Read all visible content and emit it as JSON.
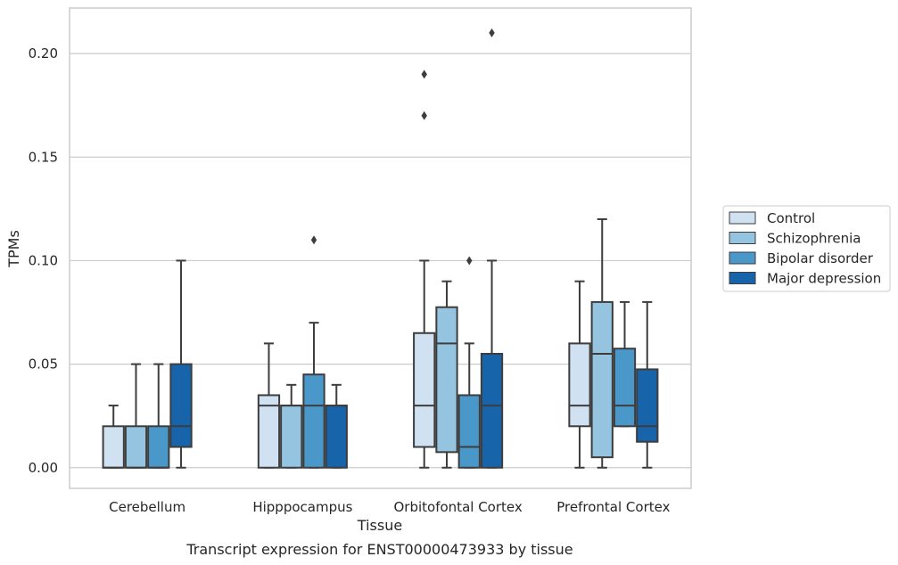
{
  "caption": "Transcript expression for ENST00000473933 by tissue",
  "chart_data": {
    "type": "box",
    "xlabel": "Tissue",
    "ylabel": "TPMs",
    "ylim": [
      -0.01,
      0.222
    ],
    "yticks": [
      "0.00",
      "0.05",
      "0.10",
      "0.15",
      "0.20"
    ],
    "ytick_values": [
      0,
      0.05,
      0.1,
      0.15,
      0.2
    ],
    "grid": "horizontal",
    "legend_position": "right",
    "categories": [
      "Cerebellum",
      "Hipppocampus",
      "Orbitofontal Cortex",
      "Prefrontal Cortex"
    ],
    "series": [
      {
        "name": "Control",
        "color": "#d0e1f2",
        "boxes": [
          {
            "whislo": 0,
            "q1": 0,
            "med": 0,
            "q3": 0.02,
            "whishi": 0.03,
            "fliers": []
          },
          {
            "whislo": 0,
            "q1": 0,
            "med": 0.03,
            "q3": 0.035,
            "whishi": 0.06,
            "fliers": []
          },
          {
            "whislo": 0,
            "q1": 0.01,
            "med": 0.03,
            "q3": 0.065,
            "whishi": 0.1,
            "fliers": [
              0.17,
              0.19
            ]
          },
          {
            "whislo": 0,
            "q1": 0.02,
            "med": 0.03,
            "q3": 0.06,
            "whishi": 0.09,
            "fliers": []
          }
        ]
      },
      {
        "name": "Schizophrenia",
        "color": "#94c4df",
        "boxes": [
          {
            "whislo": 0,
            "q1": 0,
            "med": 0,
            "q3": 0.02,
            "whishi": 0.05,
            "fliers": []
          },
          {
            "whislo": 0,
            "q1": 0,
            "med": 0.03,
            "q3": 0.03,
            "whishi": 0.04,
            "fliers": []
          },
          {
            "whislo": 0,
            "q1": 0.0075,
            "med": 0.06,
            "q3": 0.0775,
            "whishi": 0.09,
            "fliers": []
          },
          {
            "whislo": 0,
            "q1": 0.005,
            "med": 0.055,
            "q3": 0.08,
            "whishi": 0.12,
            "fliers": []
          }
        ]
      },
      {
        "name": "Bipolar disorder",
        "color": "#4a98c9",
        "boxes": [
          {
            "whislo": 0,
            "q1": 0,
            "med": 0,
            "q3": 0.02,
            "whishi": 0.05,
            "fliers": []
          },
          {
            "whislo": 0,
            "q1": 0,
            "med": 0.03,
            "q3": 0.045,
            "whishi": 0.07,
            "fliers": [
              0.11
            ]
          },
          {
            "whislo": 0,
            "q1": 0,
            "med": 0.01,
            "q3": 0.035,
            "whishi": 0.06,
            "fliers": [
              0.1
            ]
          },
          {
            "whislo": 0.02,
            "q1": 0.02,
            "med": 0.03,
            "q3": 0.0575,
            "whishi": 0.08,
            "fliers": []
          }
        ]
      },
      {
        "name": "Major depression",
        "color": "#1764ab",
        "boxes": [
          {
            "whislo": 0,
            "q1": 0.01,
            "med": 0.02,
            "q3": 0.05,
            "whishi": 0.1,
            "fliers": []
          },
          {
            "whislo": 0,
            "q1": 0,
            "med": 0.03,
            "q3": 0.03,
            "whishi": 0.04,
            "fliers": []
          },
          {
            "whislo": 0,
            "q1": 0,
            "med": 0.03,
            "q3": 0.055,
            "whishi": 0.1,
            "fliers": [
              0.21
            ]
          },
          {
            "whislo": 0,
            "q1": 0.0125,
            "med": 0.02,
            "q3": 0.0475,
            "whishi": 0.08,
            "fliers": []
          }
        ]
      }
    ]
  }
}
